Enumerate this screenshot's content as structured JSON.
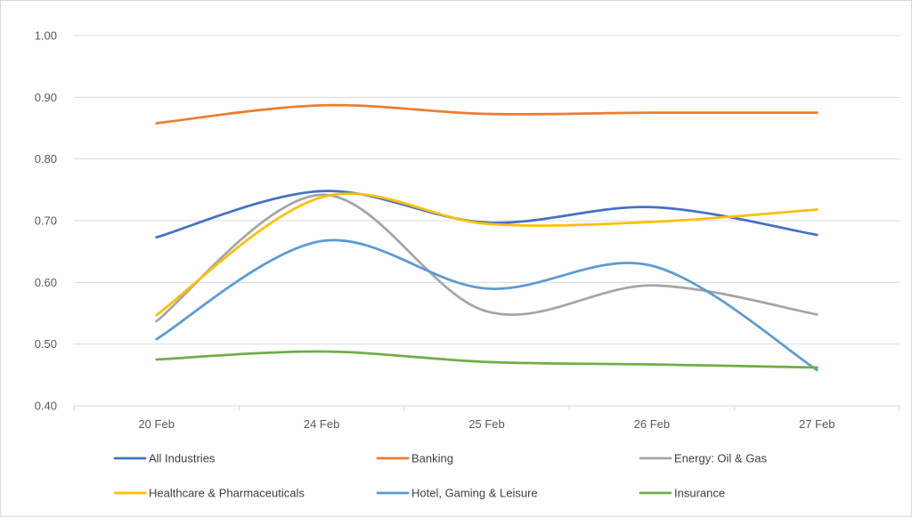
{
  "chart_data": {
    "type": "line",
    "categories": [
      "20 Feb",
      "24 Feb",
      "25 Feb",
      "26 Feb",
      "27 Feb"
    ],
    "ylim": [
      0.4,
      1.0
    ],
    "yticks": [
      "0.40",
      "0.50",
      "0.60",
      "0.70",
      "0.80",
      "0.90",
      "1.00"
    ],
    "ytick_values": [
      0.4,
      0.5,
      0.6,
      0.7,
      0.8,
      0.9,
      1.0
    ],
    "grid": true,
    "legend": "bottom",
    "title": "",
    "xlabel": "",
    "ylabel": "",
    "series": [
      {
        "name": "All Industries",
        "color": "#4472C4",
        "values": [
          0.673,
          0.748,
          0.697,
          0.722,
          0.677
        ]
      },
      {
        "name": "Banking",
        "color": "#ED7D31",
        "values": [
          0.858,
          0.887,
          0.873,
          0.875,
          0.875
        ]
      },
      {
        "name": "Energy: Oil & Gas",
        "color": "#A5A5A5",
        "values": [
          0.537,
          0.742,
          0.553,
          0.595,
          0.548
        ]
      },
      {
        "name": "Healthcare & Pharmaceuticals",
        "color": "#FFC000",
        "values": [
          0.547,
          0.738,
          0.695,
          0.698,
          0.718
        ]
      },
      {
        "name": "Hotel, Gaming & Leisure",
        "color": "#5B9BD5",
        "values": [
          0.508,
          0.667,
          0.59,
          0.627,
          0.458
        ]
      },
      {
        "name": "Insurance",
        "color": "#70AD47",
        "values": [
          0.475,
          0.488,
          0.471,
          0.467,
          0.462
        ]
      }
    ]
  }
}
